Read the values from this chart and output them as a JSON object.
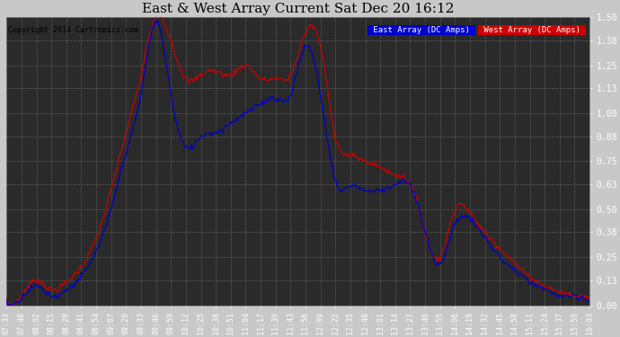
{
  "title": "East & West Array Current Sat Dec 20 16:12",
  "copyright": "Copyright 2014 Cartronics.com",
  "east_label": "East Array (DC Amps)",
  "west_label": "West Array (DC Amps)",
  "east_color": "#0000cc",
  "west_color": "#cc0000",
  "fig_bg_color": "#c8c8c8",
  "plot_bg_color": "#2a2a2a",
  "ylim": [
    0.0,
    1.5
  ],
  "yticks": [
    0.0,
    0.13,
    0.25,
    0.38,
    0.5,
    0.63,
    0.75,
    0.88,
    1.0,
    1.13,
    1.25,
    1.38,
    1.5
  ],
  "xtick_labels": [
    "07:33",
    "07:48",
    "08:02",
    "08:15",
    "08:28",
    "08:41",
    "08:54",
    "09:07",
    "09:20",
    "09:33",
    "09:46",
    "09:59",
    "10:12",
    "10:25",
    "10:38",
    "10:51",
    "11:04",
    "11:17",
    "11:30",
    "11:43",
    "11:56",
    "12:09",
    "12:22",
    "12:35",
    "12:48",
    "13:01",
    "13:14",
    "13:27",
    "13:40",
    "13:55",
    "14:06",
    "14:19",
    "14:32",
    "14:45",
    "14:58",
    "15:11",
    "15:24",
    "15:37",
    "15:50",
    "16:03"
  ],
  "west_keypoints_x": [
    0,
    1,
    2,
    3,
    4,
    5,
    6,
    7,
    8,
    9,
    10,
    11,
    12,
    13,
    14,
    15,
    16,
    17,
    18,
    19,
    20,
    21,
    22,
    23,
    24,
    25,
    26,
    27,
    28,
    29,
    30,
    31,
    32,
    33,
    34,
    35,
    36,
    37,
    38,
    39
  ],
  "west_keypoints_y": [
    0.02,
    0.05,
    0.13,
    0.08,
    0.12,
    0.2,
    0.35,
    0.6,
    0.9,
    1.2,
    1.5,
    1.38,
    1.18,
    1.2,
    1.22,
    1.2,
    1.25,
    1.18,
    1.18,
    1.2,
    1.42,
    1.35,
    0.88,
    0.78,
    0.75,
    0.72,
    0.68,
    0.63,
    0.38,
    0.25,
    0.5,
    0.48,
    0.38,
    0.3,
    0.22,
    0.15,
    0.1,
    0.07,
    0.05,
    0.04
  ],
  "east_keypoints_y": [
    0.01,
    0.04,
    0.1,
    0.05,
    0.08,
    0.15,
    0.28,
    0.5,
    0.8,
    1.1,
    1.48,
    1.1,
    0.82,
    0.88,
    0.9,
    0.95,
    1.0,
    1.05,
    1.08,
    1.1,
    1.35,
    1.1,
    0.65,
    0.62,
    0.6,
    0.6,
    0.63,
    0.62,
    0.38,
    0.22,
    0.42,
    0.45,
    0.35,
    0.25,
    0.18,
    0.12,
    0.08,
    0.05,
    0.04,
    0.02
  ]
}
